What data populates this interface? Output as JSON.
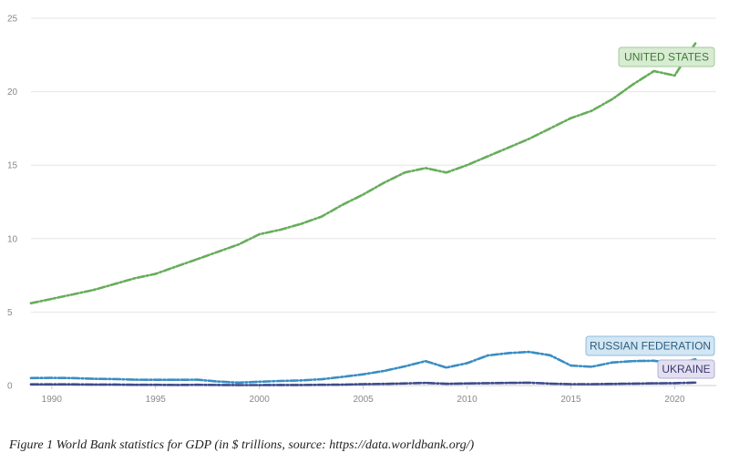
{
  "chart_data": {
    "type": "line",
    "xlabel": "",
    "ylabel": "",
    "xlim": [
      1989,
      2022
    ],
    "ylim": [
      0,
      25
    ],
    "grid": true,
    "legend": "inline labels at line ends",
    "x_ticks": [
      "1990",
      "1995",
      "2000",
      "2005",
      "2010",
      "2015",
      "2020"
    ],
    "y_ticks": [
      "0",
      "5",
      "10",
      "15",
      "20",
      "25"
    ],
    "x": [
      1989,
      1990,
      1991,
      1992,
      1993,
      1994,
      1995,
      1996,
      1997,
      1998,
      1999,
      2000,
      2001,
      2002,
      2003,
      2004,
      2005,
      2006,
      2007,
      2008,
      2009,
      2010,
      2011,
      2012,
      2013,
      2014,
      2015,
      2016,
      2017,
      2018,
      2019,
      2020,
      2021
    ],
    "series": [
      {
        "name": "UNITED STATES",
        "color": "#67ad5b",
        "label_bg": "#d8ebd3",
        "label_border": "#9fcb96",
        "label_color": "#3d7a34",
        "values": [
          5.6,
          5.9,
          6.2,
          6.5,
          6.9,
          7.3,
          7.6,
          8.1,
          8.6,
          9.1,
          9.6,
          10.3,
          10.6,
          11.0,
          11.5,
          12.3,
          13.0,
          13.8,
          14.5,
          14.8,
          14.5,
          15.0,
          15.6,
          16.2,
          16.8,
          17.5,
          18.2,
          18.7,
          19.5,
          20.5,
          21.4,
          21.1,
          23.3
        ]
      },
      {
        "name": "RUSSIAN FEDERATION",
        "color": "#3a8dc4",
        "label_bg": "#d3e6f3",
        "label_border": "#8dbcdc",
        "label_color": "#2a5d80",
        "values": [
          0.51,
          0.52,
          0.51,
          0.46,
          0.44,
          0.4,
          0.39,
          0.39,
          0.4,
          0.27,
          0.2,
          0.26,
          0.31,
          0.35,
          0.43,
          0.59,
          0.76,
          0.99,
          1.3,
          1.66,
          1.22,
          1.52,
          2.05,
          2.21,
          2.29,
          2.06,
          1.36,
          1.28,
          1.57,
          1.66,
          1.69,
          1.49,
          1.78
        ]
      },
      {
        "name": "UKRAINE",
        "color": "#3f4b8c",
        "label_bg": "#e2e0f0",
        "label_border": "#b3afd6",
        "label_color": "#3c3870",
        "values": [
          0.08,
          0.08,
          0.08,
          0.07,
          0.07,
          0.05,
          0.05,
          0.04,
          0.05,
          0.04,
          0.03,
          0.03,
          0.04,
          0.04,
          0.05,
          0.06,
          0.09,
          0.11,
          0.14,
          0.18,
          0.12,
          0.14,
          0.16,
          0.18,
          0.19,
          0.13,
          0.09,
          0.09,
          0.11,
          0.13,
          0.15,
          0.16,
          0.2
        ]
      }
    ]
  },
  "caption": "Figure 1 World Bank statistics for GDP (in $ trillions, source: https://data.worldbank.org/)"
}
